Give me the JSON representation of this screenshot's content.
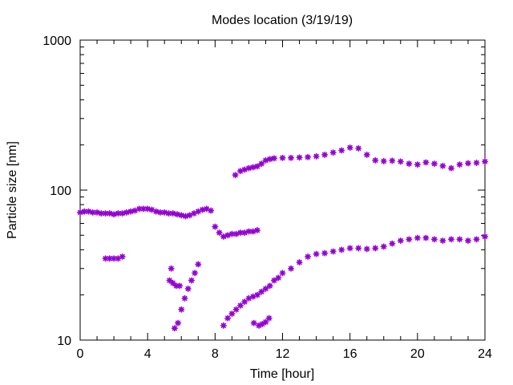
{
  "chart_data": {
    "type": "scatter",
    "title": "Modes location (3/19/19)",
    "xlabel": "Time [hour]",
    "ylabel": "Particle size [nm]",
    "xlim": [
      0,
      24
    ],
    "ylim": [
      10,
      1000
    ],
    "yscale": "log",
    "x_ticks": [
      "0",
      "4",
      "8",
      "12",
      "16",
      "20",
      "24"
    ],
    "y_ticks": [
      "10",
      "100",
      "1000"
    ],
    "grid": false,
    "legend": "none",
    "marker": "star",
    "color": "#9400d3",
    "series": [
      {
        "x": [
          0.0,
          0.25,
          0.5,
          0.75,
          1.0,
          1.25,
          1.5,
          1.75,
          2.0,
          2.25,
          2.5,
          2.75,
          3.0,
          3.25,
          3.5,
          3.75,
          4.0,
          4.25,
          4.5,
          4.75,
          5.0,
          5.25,
          5.5,
          5.75,
          6.0,
          6.25,
          6.5,
          6.75,
          7.0,
          7.25,
          7.5,
          7.75,
          8.0,
          8.25,
          8.5,
          8.75,
          9.0,
          9.25,
          9.5,
          9.75,
          10.0,
          10.25,
          10.5
        ],
        "y": [
          71,
          72,
          72,
          71,
          71,
          70,
          70,
          70,
          69,
          70,
          70,
          71,
          72,
          73,
          75,
          75,
          75,
          74,
          72,
          71,
          71,
          70,
          70,
          69,
          68,
          67,
          68,
          70,
          72,
          74,
          75,
          73,
          57,
          52,
          49,
          50,
          51,
          51,
          52,
          52,
          53,
          53,
          54
        ]
      },
      {
        "x": [
          1.5,
          1.75,
          2.0,
          2.25,
          2.5
        ],
        "y": [
          35,
          35,
          35,
          35,
          36
        ]
      },
      {
        "x": [
          5.3,
          5.5,
          5.7,
          5.9
        ],
        "y": [
          25,
          24,
          23,
          23
        ]
      },
      {
        "x": [
          5.6,
          5.8,
          6.0,
          6.2,
          6.4,
          6.6,
          6.8,
          7.0
        ],
        "y": [
          12,
          13,
          16,
          19,
          22,
          25,
          28,
          32
        ]
      },
      {
        "x": [
          5.4
        ],
        "y": [
          30
        ]
      },
      {
        "x": [
          8.5,
          8.75,
          9.0,
          9.25,
          9.5,
          9.75,
          10.0,
          10.25,
          10.5,
          10.75,
          11.0,
          11.25,
          11.5,
          11.75,
          12.0,
          12.5,
          13.0,
          13.5,
          14.0,
          14.5,
          15.0,
          15.5,
          16.0,
          16.5,
          17.0,
          17.5,
          18.0,
          18.5,
          19.0,
          19.5,
          20.0,
          20.5,
          21.0,
          21.5,
          22.0,
          22.5,
          23.0,
          23.5,
          24.0
        ],
        "y": [
          12.5,
          14,
          15,
          16,
          17,
          18,
          19,
          19.5,
          20,
          21,
          22,
          23,
          25,
          26,
          28,
          30,
          33,
          36,
          37.5,
          38,
          39,
          40,
          41,
          41,
          40.5,
          41,
          42,
          44,
          46,
          47,
          48,
          48,
          47,
          46,
          47,
          47,
          46,
          47,
          49
        ]
      },
      {
        "x": [
          10.3,
          10.6,
          10.8,
          11.0,
          11.2
        ],
        "y": [
          13,
          12.5,
          12.8,
          13.2,
          14
        ]
      },
      {
        "x": [
          9.2,
          9.5,
          9.75,
          10.0,
          10.25,
          10.5,
          10.75,
          11.0,
          11.25,
          11.5,
          12.0,
          12.5,
          13.0,
          13.5,
          14.0,
          14.5,
          15.0,
          15.5,
          16.0,
          16.5,
          17.0,
          17.5,
          18.0,
          18.5,
          19.0,
          19.5,
          20.0,
          20.5,
          21.0,
          21.5,
          22.0,
          22.5,
          23.0,
          23.5,
          24.0
        ],
        "y": [
          126,
          134,
          137,
          140,
          142,
          144,
          150,
          158,
          161,
          163,
          164,
          164,
          165,
          166,
          168,
          172,
          178,
          184,
          192,
          190,
          172,
          158,
          156,
          157,
          155,
          150,
          148,
          153,
          150,
          145,
          140,
          148,
          151,
          152,
          155
        ]
      }
    ]
  }
}
